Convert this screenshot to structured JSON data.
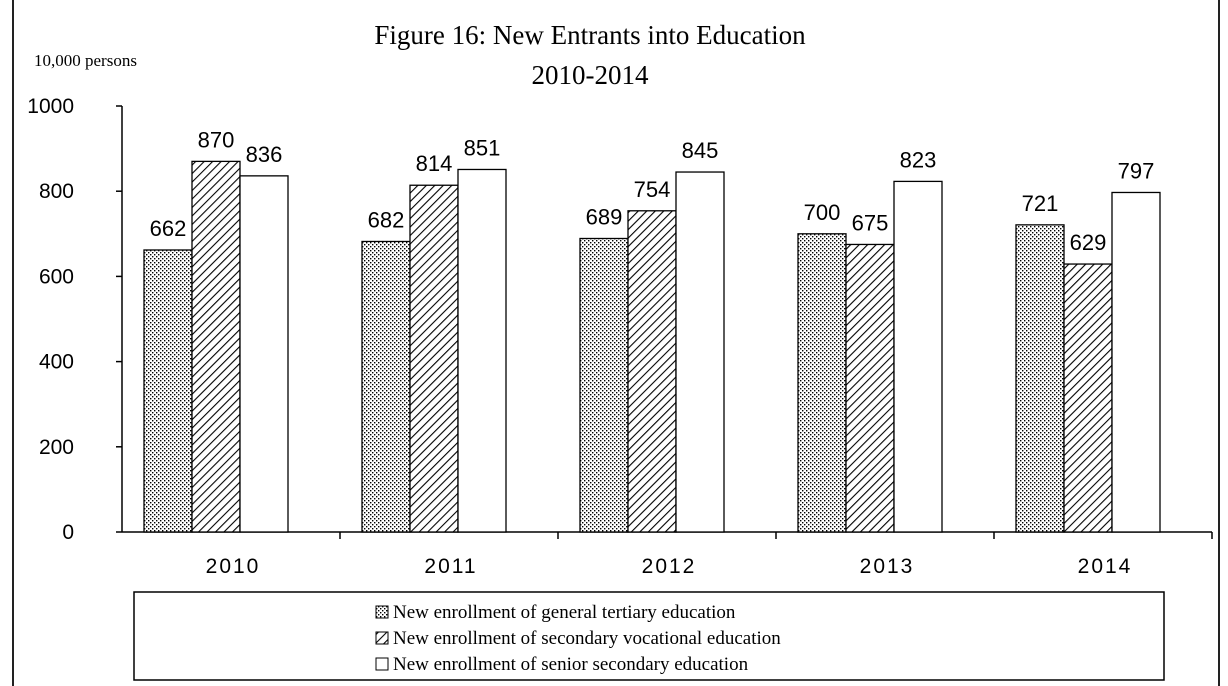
{
  "chart_data": {
    "type": "bar",
    "title_line1": "Figure 16: New Entrants into Education",
    "title_line2": "2010-2014",
    "ylabel": "10,000 persons",
    "ylim": [
      0,
      1000
    ],
    "yticks": [
      0,
      200,
      400,
      600,
      800,
      1000
    ],
    "categories": [
      "2010",
      "2011",
      "2012",
      "2013",
      "2014"
    ],
    "series": [
      {
        "name": "New enrollment of general tertiary education",
        "pattern": "dots",
        "values": [
          662,
          682,
          689,
          700,
          721
        ]
      },
      {
        "name": "New enrollment of secondary vocational education",
        "pattern": "hatch",
        "values": [
          870,
          814,
          754,
          675,
          629
        ]
      },
      {
        "name": "New enrollment of senior secondary education",
        "pattern": "blank",
        "values": [
          836,
          851,
          845,
          823,
          797
        ]
      }
    ],
    "legend_position": "bottom",
    "grid": false,
    "colors": {
      "stroke": "#000000",
      "fill": "#ffffff"
    }
  }
}
